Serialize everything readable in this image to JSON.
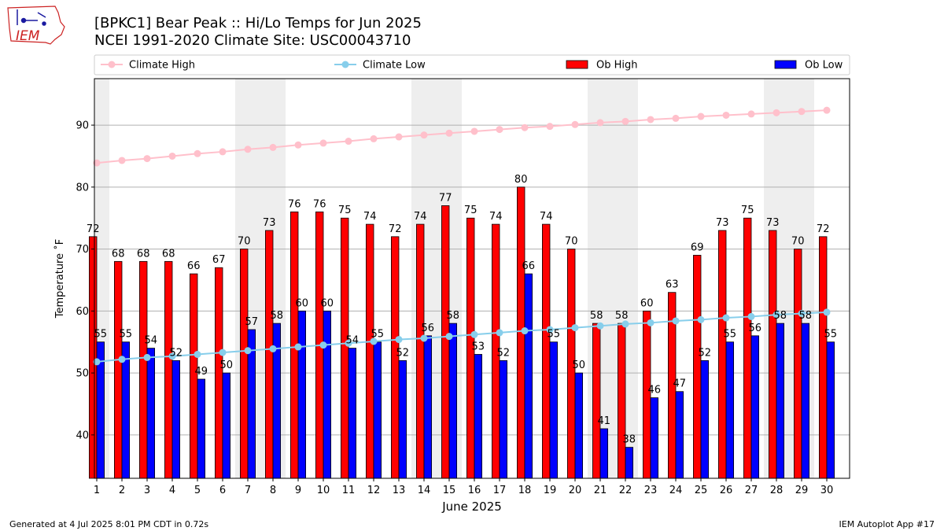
{
  "header": {
    "title_line1": "[BPKC1] Bear Peak :: Hi/Lo Temps for Jun 2025",
    "title_line2": "NCEI 1991-2020 Climate Site: USC00043710",
    "logo_text": "IEM"
  },
  "footer": {
    "generated": "Generated at 4 Jul 2025 8:01 PM CDT in 0.72s",
    "app": "IEM Autoplot App #17"
  },
  "colors": {
    "ob_high": "#ff0000",
    "ob_low": "#0000ff",
    "climate_high": "#ffc0cb",
    "climate_low": "#87ceeb",
    "weekend_shade": "#eeeeee",
    "grid": "#b0b0b0",
    "logo": "#cc2222"
  },
  "chart_data": {
    "type": "bar",
    "xlabel": "June 2025",
    "ylabel": "Temperature ˚F",
    "ylim": [
      33,
      97.5
    ],
    "yticks": [
      40,
      50,
      60,
      70,
      80,
      90
    ],
    "grid": "horizontal",
    "legend_position": "top",
    "shaded_days": [
      1,
      7,
      8,
      14,
      15,
      21,
      22,
      28,
      29
    ],
    "categories": [
      "1",
      "2",
      "3",
      "4",
      "5",
      "6",
      "7",
      "8",
      "9",
      "10",
      "11",
      "12",
      "13",
      "14",
      "15",
      "16",
      "17",
      "18",
      "19",
      "20",
      "21",
      "22",
      "23",
      "24",
      "25",
      "26",
      "27",
      "28",
      "29",
      "30"
    ],
    "series": [
      {
        "name": "Climate High",
        "kind": "line",
        "values": [
          83.9,
          84.3,
          84.6,
          85.0,
          85.4,
          85.7,
          86.1,
          86.4,
          86.8,
          87.1,
          87.4,
          87.8,
          88.1,
          88.4,
          88.7,
          89.0,
          89.3,
          89.6,
          89.8,
          90.1,
          90.4,
          90.6,
          90.9,
          91.1,
          91.4,
          91.6,
          91.8,
          92.0,
          92.2,
          92.4
        ]
      },
      {
        "name": "Climate Low",
        "kind": "line",
        "values": [
          51.8,
          52.2,
          52.5,
          52.7,
          53.0,
          53.3,
          53.6,
          53.9,
          54.2,
          54.5,
          54.8,
          55.1,
          55.4,
          55.6,
          55.9,
          56.2,
          56.5,
          56.8,
          57.0,
          57.3,
          57.6,
          57.9,
          58.1,
          58.4,
          58.6,
          58.9,
          59.1,
          59.4,
          59.6,
          59.8
        ]
      },
      {
        "name": "Ob High",
        "kind": "bar",
        "values": [
          72,
          68,
          68,
          68,
          66,
          67,
          70,
          73,
          76,
          76,
          75,
          74,
          72,
          74,
          77,
          75,
          74,
          80,
          74,
          70,
          58,
          58,
          60,
          63,
          69,
          73,
          75,
          73,
          70,
          72
        ]
      },
      {
        "name": "Ob Low",
        "kind": "bar",
        "values": [
          55,
          55,
          54,
          52,
          49,
          50,
          57,
          58,
          60,
          60,
          54,
          55,
          52,
          56,
          58,
          53,
          52,
          66,
          55,
          50,
          41,
          38,
          46,
          47,
          52,
          55,
          56,
          58,
          58,
          55
        ]
      }
    ]
  }
}
